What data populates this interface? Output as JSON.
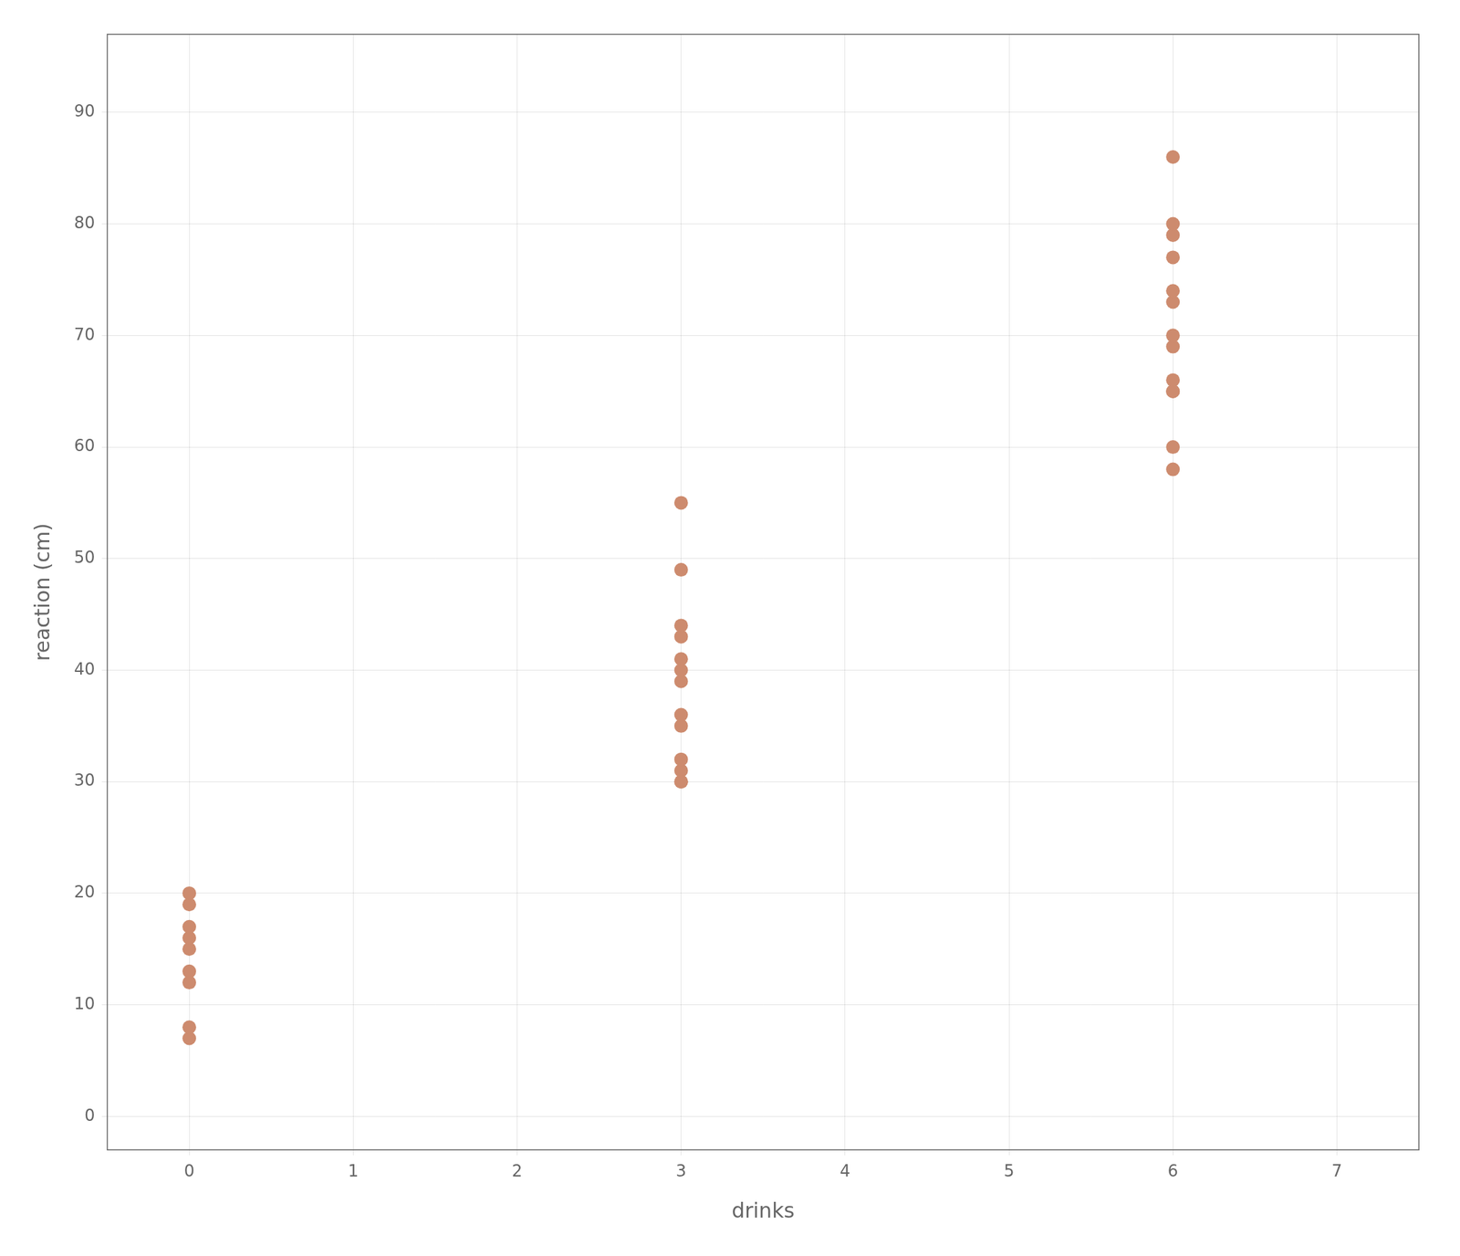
{
  "chart_data": {
    "type": "scatter",
    "x": [
      0,
      0,
      0,
      0,
      0,
      0,
      0,
      0,
      0,
      3,
      3,
      3,
      3,
      3,
      3,
      3,
      3,
      3,
      3,
      3,
      3,
      3,
      6,
      6,
      6,
      6,
      6,
      6,
      6,
      6,
      6,
      6,
      6,
      6,
      6
    ],
    "values": [
      7,
      8,
      12,
      13,
      15,
      16,
      17,
      19,
      20,
      30,
      31,
      32,
      35,
      36,
      39,
      40,
      41,
      43,
      44,
      49,
      55,
      30,
      58,
      60,
      65,
      65,
      66,
      69,
      70,
      73,
      74,
      77,
      79,
      80,
      86
    ],
    "color": "#cd8b6e",
    "xlabel": "drinks",
    "ylabel": "reaction (cm)",
    "xlim": [
      -0.5,
      7.5
    ],
    "ylim": [
      -3,
      97
    ],
    "xticks": [
      0,
      1,
      2,
      3,
      4,
      5,
      6,
      7
    ],
    "yticks": [
      0,
      10,
      20,
      30,
      40,
      50,
      60,
      70,
      80,
      90
    ],
    "grid": true
  }
}
